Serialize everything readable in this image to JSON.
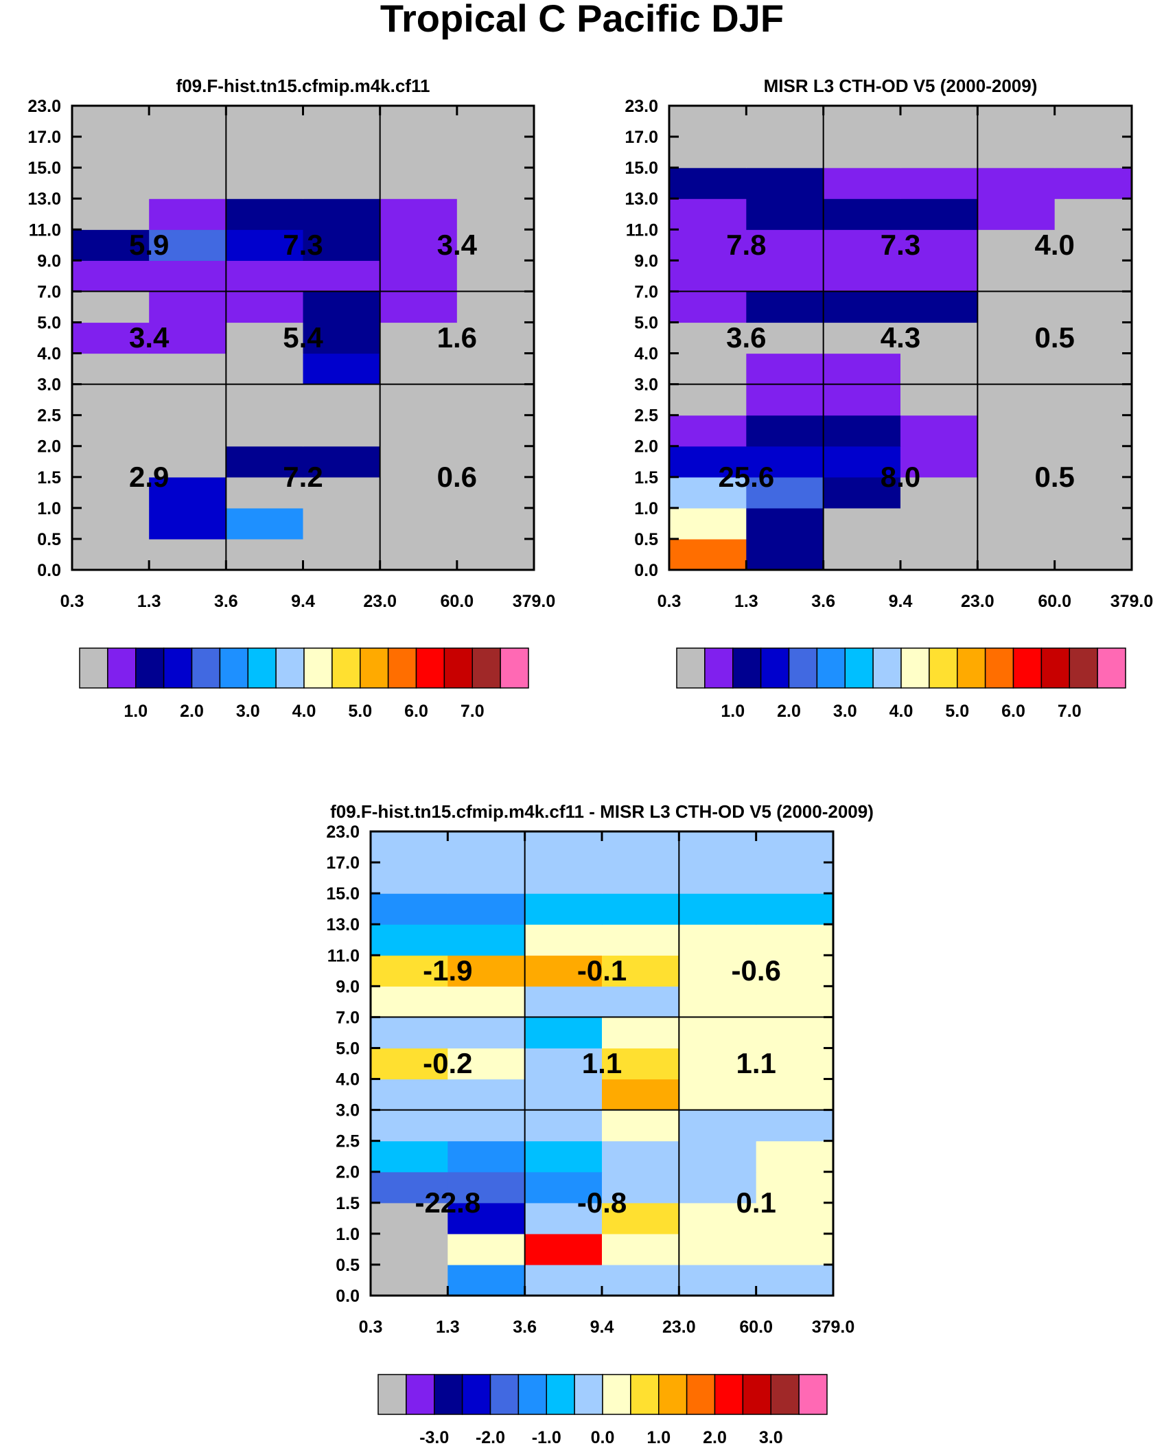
{
  "title": "Tropical C Pacific DJF",
  "chart_data": [
    {
      "type": "heatmap",
      "id": "model",
      "title": "f09.F-hist.tn15.cfmip.m4k.cf11",
      "x_ticks": [
        "0.3",
        "1.3",
        "3.6",
        "9.4",
        "23.0",
        "60.0",
        "379.0"
      ],
      "y_ticks": [
        "0.0",
        "0.5",
        "1.0",
        "1.5",
        "2.0",
        "2.5",
        "3.0",
        "4.0",
        "5.0",
        "7.0",
        "9.0",
        "11.0",
        "13.0",
        "15.0",
        "17.0",
        "23.0"
      ],
      "grid_rows": "index 0 = bottom row (0.0-0.5), values are colour-bin indices into the colorbar palette",
      "cells": [
        [
          0,
          0,
          0,
          0,
          0,
          0
        ],
        [
          0,
          3,
          5,
          0,
          0,
          0
        ],
        [
          0,
          3,
          0,
          0,
          0,
          0
        ],
        [
          0,
          0,
          2,
          2,
          0,
          0
        ],
        [
          0,
          0,
          0,
          0,
          0,
          0
        ],
        [
          0,
          0,
          0,
          0,
          0,
          0
        ],
        [
          0,
          0,
          0,
          3,
          0,
          0
        ],
        [
          1,
          1,
          0,
          2,
          0,
          0
        ],
        [
          0,
          1,
          1,
          2,
          1,
          0
        ],
        [
          1,
          1,
          1,
          1,
          1,
          0
        ],
        [
          2,
          4,
          3,
          2,
          1,
          0
        ],
        [
          0,
          1,
          2,
          2,
          1,
          0
        ],
        [
          0,
          0,
          0,
          0,
          0,
          0
        ],
        [
          0,
          0,
          0,
          0,
          0,
          0
        ],
        [
          0,
          0,
          0,
          0,
          0,
          0
        ]
      ],
      "annotations": [
        {
          "col": 0,
          "row": 0,
          "text": "2.9"
        },
        {
          "col": 1,
          "row": 0,
          "text": "7.2"
        },
        {
          "col": 2,
          "row": 0,
          "text": "0.6"
        },
        {
          "col": 0,
          "row": 1,
          "text": "3.4"
        },
        {
          "col": 1,
          "row": 1,
          "text": "5.4"
        },
        {
          "col": 2,
          "row": 1,
          "text": "1.6"
        },
        {
          "col": 0,
          "row": 2,
          "text": "5.9"
        },
        {
          "col": 1,
          "row": 2,
          "text": "7.3"
        },
        {
          "col": 2,
          "row": 2,
          "text": "3.4"
        }
      ],
      "colorbar": {
        "colors": [
          "#bebebe",
          "#8020ee",
          "#000090",
          "#0000cd",
          "#4169e1",
          "#1e90ff",
          "#00bfff",
          "#a2cdff",
          "#ffffc8",
          "#ffe030",
          "#ffaa00",
          "#ff6e00",
          "#ff0000",
          "#c80000",
          "#a02828",
          "#ff69b4"
        ],
        "labels": [
          "1.0",
          "2.0",
          "3.0",
          "4.0",
          "5.0",
          "6.0",
          "7.0"
        ],
        "label_start": 2
      }
    },
    {
      "type": "heatmap",
      "id": "obs",
      "title": "MISR L3 CTH-OD V5 (2000-2009)",
      "x_ticks": [
        "0.3",
        "1.3",
        "3.6",
        "9.4",
        "23.0",
        "60.0",
        "379.0"
      ],
      "y_ticks": [
        "0.0",
        "0.5",
        "1.0",
        "1.5",
        "2.0",
        "2.5",
        "3.0",
        "4.0",
        "5.0",
        "7.0",
        "9.0",
        "11.0",
        "13.0",
        "15.0",
        "17.0",
        "23.0"
      ],
      "cells": [
        [
          11,
          2,
          0,
          0,
          0,
          0
        ],
        [
          8,
          2,
          0,
          0,
          0,
          0
        ],
        [
          7,
          4,
          2,
          0,
          0,
          0
        ],
        [
          3,
          3,
          3,
          1,
          0,
          0
        ],
        [
          1,
          2,
          2,
          1,
          0,
          0
        ],
        [
          0,
          1,
          1,
          0,
          0,
          0
        ],
        [
          0,
          1,
          1,
          0,
          0,
          0
        ],
        [
          0,
          0,
          0,
          0,
          0,
          0
        ],
        [
          1,
          2,
          2,
          2,
          0,
          0
        ],
        [
          1,
          1,
          1,
          1,
          0,
          0
        ],
        [
          1,
          1,
          1,
          1,
          0,
          0
        ],
        [
          1,
          2,
          2,
          2,
          1,
          0
        ],
        [
          2,
          2,
          1,
          1,
          1,
          1
        ],
        [
          0,
          0,
          0,
          0,
          0,
          0
        ],
        [
          0,
          0,
          0,
          0,
          0,
          0
        ]
      ],
      "annotations": [
        {
          "col": 0,
          "row": 0,
          "text": "25.6"
        },
        {
          "col": 1,
          "row": 0,
          "text": "8.0"
        },
        {
          "col": 2,
          "row": 0,
          "text": "0.5"
        },
        {
          "col": 0,
          "row": 1,
          "text": "3.6"
        },
        {
          "col": 1,
          "row": 1,
          "text": "4.3"
        },
        {
          "col": 2,
          "row": 1,
          "text": "0.5"
        },
        {
          "col": 0,
          "row": 2,
          "text": "7.8"
        },
        {
          "col": 1,
          "row": 2,
          "text": "7.3"
        },
        {
          "col": 2,
          "row": 2,
          "text": "4.0"
        }
      ],
      "colorbar": {
        "colors": [
          "#bebebe",
          "#8020ee",
          "#000090",
          "#0000cd",
          "#4169e1",
          "#1e90ff",
          "#00bfff",
          "#a2cdff",
          "#ffffc8",
          "#ffe030",
          "#ffaa00",
          "#ff6e00",
          "#ff0000",
          "#c80000",
          "#a02828",
          "#ff69b4"
        ],
        "labels": [
          "1.0",
          "2.0",
          "3.0",
          "4.0",
          "5.0",
          "6.0",
          "7.0"
        ],
        "label_start": 2
      }
    },
    {
      "type": "heatmap",
      "id": "diff",
      "title": "f09.F-hist.tn15.cfmip.m4k.cf11 - MISR L3 CTH-OD V5 (2000-2009)",
      "x_ticks": [
        "0.3",
        "1.3",
        "3.6",
        "9.4",
        "23.0",
        "60.0",
        "379.0"
      ],
      "y_ticks": [
        "0.0",
        "0.5",
        "1.0",
        "1.5",
        "2.0",
        "2.5",
        "3.0",
        "4.0",
        "5.0",
        "7.0",
        "9.0",
        "11.0",
        "13.0",
        "15.0",
        "17.0",
        "23.0"
      ],
      "cells": [
        [
          0,
          5,
          7,
          7,
          7,
          7
        ],
        [
          0,
          8,
          12,
          8,
          8,
          8
        ],
        [
          0,
          3,
          7,
          9,
          8,
          8
        ],
        [
          4,
          4,
          5,
          7,
          7,
          8
        ],
        [
          6,
          5,
          6,
          7,
          7,
          8
        ],
        [
          7,
          7,
          7,
          8,
          7,
          7
        ],
        [
          7,
          7,
          7,
          10,
          8,
          8
        ],
        [
          9,
          8,
          7,
          9,
          8,
          8
        ],
        [
          7,
          7,
          6,
          8,
          8,
          8
        ],
        [
          8,
          8,
          7,
          7,
          8,
          8
        ],
        [
          9,
          10,
          10,
          9,
          8,
          8
        ],
        [
          6,
          6,
          8,
          8,
          8,
          8
        ],
        [
          5,
          5,
          6,
          6,
          6,
          6
        ],
        [
          7,
          7,
          7,
          7,
          7,
          7
        ],
        [
          7,
          7,
          7,
          7,
          7,
          7
        ]
      ],
      "annotations": [
        {
          "col": 0,
          "row": 0,
          "text": "-22.8"
        },
        {
          "col": 1,
          "row": 0,
          "text": "-0.8"
        },
        {
          "col": 2,
          "row": 0,
          "text": "0.1"
        },
        {
          "col": 0,
          "row": 1,
          "text": "-0.2"
        },
        {
          "col": 1,
          "row": 1,
          "text": "1.1"
        },
        {
          "col": 2,
          "row": 1,
          "text": "1.1"
        },
        {
          "col": 0,
          "row": 2,
          "text": "-1.9"
        },
        {
          "col": 1,
          "row": 2,
          "text": "-0.1"
        },
        {
          "col": 2,
          "row": 2,
          "text": "-0.6"
        }
      ],
      "colorbar": {
        "colors": [
          "#bebebe",
          "#8020ee",
          "#000090",
          "#0000cd",
          "#4169e1",
          "#1e90ff",
          "#00bfff",
          "#a2cdff",
          "#ffffc8",
          "#ffe030",
          "#ffaa00",
          "#ff6e00",
          "#ff0000",
          "#c80000",
          "#a02828",
          "#ff69b4"
        ],
        "labels": [
          "-3.0",
          "-2.0",
          "-1.0",
          "0.0",
          "1.0",
          "2.0",
          "3.0"
        ],
        "label_start": 2
      }
    }
  ]
}
